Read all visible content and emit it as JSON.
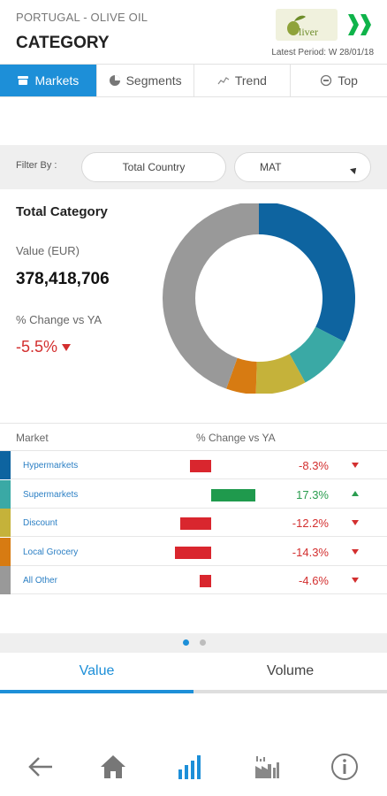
{
  "header": {
    "subtitle": "PORTUGAL - OLIVE OIL",
    "title": "CATEGORY",
    "logo_text": "liver",
    "period": "Latest Period: W 28/01/18"
  },
  "tabs": [
    {
      "label": "Markets",
      "icon": "store-icon",
      "active": true
    },
    {
      "label": "Segments",
      "icon": "pie-chart-icon",
      "active": false
    },
    {
      "label": "Trend",
      "icon": "trend-line-icon",
      "active": false
    },
    {
      "label": "Top",
      "icon": "top-icon",
      "active": false
    }
  ],
  "filters": {
    "label": "Filter By :",
    "geography": "Total Country",
    "period": "MAT"
  },
  "summary": {
    "title": "Total Category",
    "value_label": "Value (EUR)",
    "value": "378,418,706",
    "change_label": "% Change vs YA",
    "change": "-5.5%"
  },
  "table": {
    "headers": {
      "market": "Market",
      "change": "% Change vs YA"
    },
    "rows": [
      {
        "name": "Hypermarkets",
        "change": "-8.3%",
        "value": -8.3,
        "color": "#0e64a0",
        "direction": "down"
      },
      {
        "name": "Supermarkets",
        "change": "17.3%",
        "value": 17.3,
        "color": "#3aa9a5",
        "direction": "up"
      },
      {
        "name": "Discount",
        "change": "-12.2%",
        "value": -12.2,
        "color": "#c5b23a",
        "direction": "down"
      },
      {
        "name": "Local Grocery",
        "change": "-14.3%",
        "value": -14.3,
        "color": "#d77b12",
        "direction": "down"
      },
      {
        "name": "All Other",
        "change": "-4.6%",
        "value": -4.6,
        "color": "#999999",
        "direction": "down"
      }
    ]
  },
  "donut": {
    "slices": [
      {
        "market": "Hypermarkets",
        "share": 0.325,
        "color": "#0e64a0"
      },
      {
        "market": "Supermarkets",
        "share": 0.095,
        "color": "#3aa9a5"
      },
      {
        "market": "Discount",
        "share": 0.085,
        "color": "#c5b23a"
      },
      {
        "market": "Local Grocery",
        "share": 0.05,
        "color": "#d77b12"
      },
      {
        "market": "All Other",
        "share": 0.445,
        "color": "#999999"
      }
    ]
  },
  "pager": {
    "pages": 2,
    "current": 1
  },
  "toggle": {
    "value_label": "Value",
    "volume_label": "Volume",
    "selected": "Value"
  },
  "bottom_nav": [
    {
      "icon": "back-arrow-icon"
    },
    {
      "icon": "home-icon"
    },
    {
      "icon": "bar-chart-icon",
      "active": true
    },
    {
      "icon": "factory-chart-icon"
    },
    {
      "icon": "info-icon"
    }
  ],
  "colors": {
    "accent": "#1d8fd8",
    "negative": "#d32f2f",
    "positive": "#2a9d4f",
    "negative_bar": "#d9262e",
    "positive_bar": "#1f9a4d"
  }
}
